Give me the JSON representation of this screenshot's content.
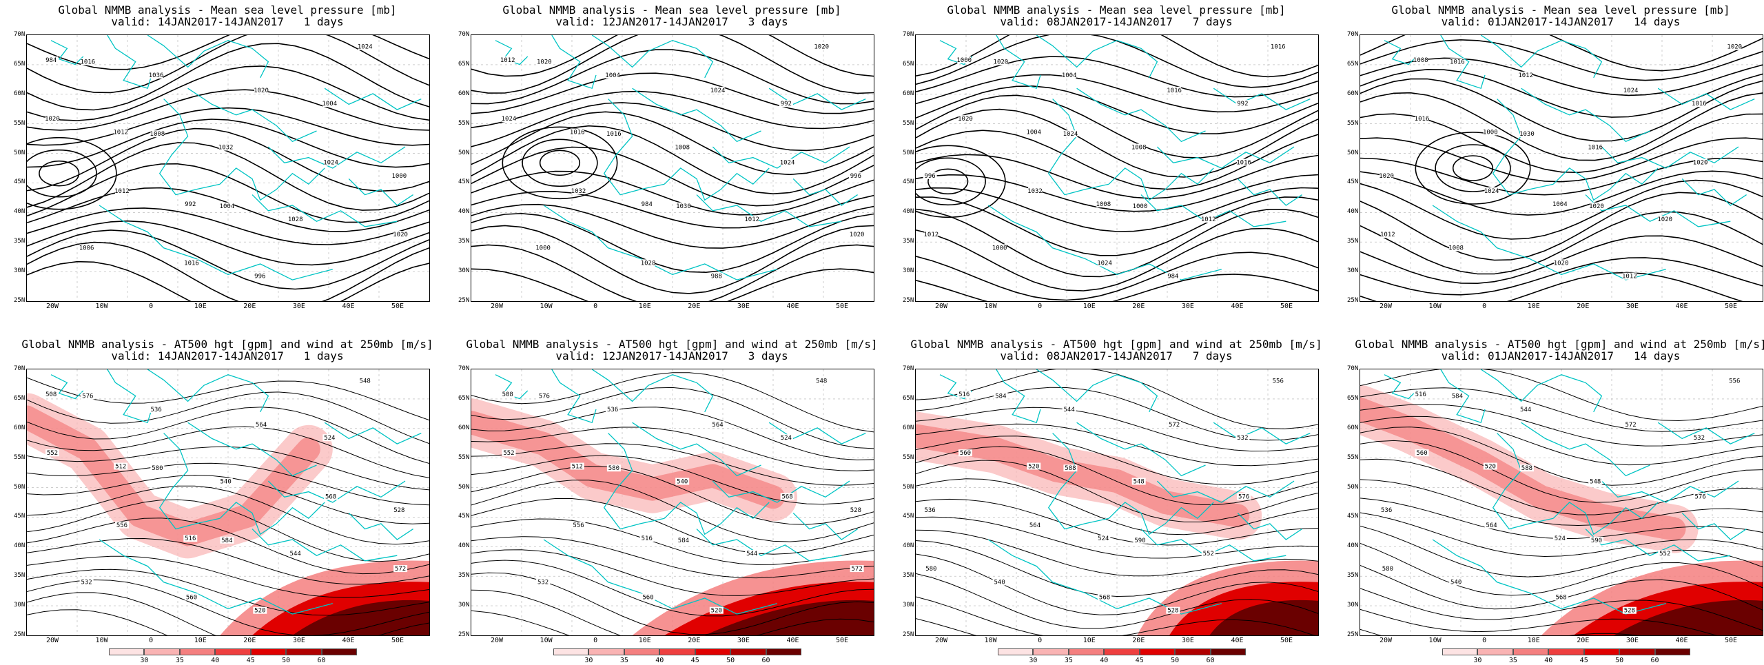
{
  "panels_top": [
    {
      "title": "Global NMMB analysis - Mean sea level pressure [mb]",
      "subtitle": "valid: 14JAN2017-14JAN2017   1 days",
      "variant": 0,
      "labels": [
        "984",
        "1012",
        "992",
        "996",
        "1004",
        "1000",
        "1006",
        "1036",
        "1032",
        "1028",
        "1024",
        "1020",
        "1012",
        "1016",
        "1020",
        "1024",
        "1020",
        "1016",
        "1008",
        "1004"
      ]
    },
    {
      "title": "Global NMMB analysis - Mean sea level pressure [mb]",
      "subtitle": "valid: 12JAN2017-14JAN2017   3 days",
      "variant": 1,
      "labels": [
        "1012",
        "1016",
        "984",
        "988",
        "992",
        "996",
        "1000",
        "1004",
        "1008",
        "1012",
        "1020",
        "1024",
        "1032",
        "1028",
        "1024",
        "1024",
        "1020",
        "1020",
        "1016",
        "1030"
      ]
    },
    {
      "title": "Global NMMB analysis - Mean sea level pressure [mb]",
      "subtitle": "valid: 08JAN2017-14JAN2017   7 days",
      "variant": 2,
      "labels": [
        "1000",
        "1004",
        "1008",
        "984",
        "992",
        "996",
        "1000",
        "1004",
        "1008",
        "1012",
        "1016",
        "1020",
        "1032",
        "1024",
        "1016",
        "1016",
        "1012",
        "1020",
        "1024",
        "1000"
      ]
    },
    {
      "title": "Global NMMB analysis - Mean sea level pressure [mb]",
      "subtitle": "valid: 01JAN2017-14JAN2017   14 days",
      "variant": 3,
      "labels": [
        "1008",
        "1000",
        "1004",
        "1012",
        "1016",
        "1020",
        "1008",
        "1012",
        "1016",
        "1020",
        "1020",
        "1016",
        "1024",
        "1020",
        "1024",
        "1020",
        "1012",
        "1016",
        "1030",
        "1020"
      ]
    }
  ],
  "panels_bottom": [
    {
      "title": "Global NMMB analysis - AT500 hgt [gpm] and wind at 250mb [m/s]",
      "subtitle": "valid: 14JAN2017-14JAN2017   1 days",
      "variant": 0,
      "labels": [
        "508",
        "512",
        "516",
        "520",
        "524",
        "528",
        "532",
        "536",
        "540",
        "544",
        "548",
        "552",
        "556",
        "560",
        "564",
        "568",
        "572",
        "576",
        "580",
        "584"
      ]
    },
    {
      "title": "Global NMMB analysis - AT500 hgt [gpm] and wind at 250mb [m/s]",
      "subtitle": "valid: 12JAN2017-14JAN2017   3 days",
      "variant": 1,
      "labels": [
        "508",
        "512",
        "516",
        "520",
        "524",
        "528",
        "532",
        "536",
        "540",
        "544",
        "548",
        "552",
        "556",
        "560",
        "564",
        "568",
        "572",
        "576",
        "580",
        "584"
      ]
    },
    {
      "title": "Global NMMB analysis - AT500 hgt [gpm] and wind at 250mb [m/s]",
      "subtitle": "valid: 08JAN2017-14JAN2017   7 days",
      "variant": 2,
      "labels": [
        "516",
        "520",
        "524",
        "528",
        "532",
        "536",
        "540",
        "544",
        "548",
        "552",
        "556",
        "560",
        "564",
        "568",
        "572",
        "576",
        "580",
        "584",
        "588",
        "590"
      ]
    },
    {
      "title": "Global NMMB analysis - AT500 hgt [gpm] and wind at 250mb [m/s]",
      "subtitle": "valid: 01JAN2017-14JAN2017   14 days",
      "variant": 3,
      "labels": [
        "516",
        "520",
        "524",
        "528",
        "532",
        "536",
        "540",
        "544",
        "548",
        "552",
        "556",
        "560",
        "564",
        "568",
        "572",
        "576",
        "580",
        "584",
        "588",
        "590"
      ]
    }
  ],
  "lat_labels": [
    "70N",
    "65N",
    "60N",
    "55N",
    "50N",
    "45N",
    "40N",
    "35N",
    "30N",
    "25N"
  ],
  "lon_labels": [
    "20W",
    "10W",
    "0",
    "10E",
    "20E",
    "30E",
    "40E",
    "50E"
  ],
  "colorbar": {
    "ticks": [
      "30",
      "35",
      "40",
      "45",
      "50",
      "60"
    ],
    "colors": [
      "#fde3e3",
      "#f9b3b3",
      "#f47f7f",
      "#ee3f3f",
      "#e00000",
      "#b00000",
      "#6a0000"
    ]
  },
  "colors": {
    "coast": "#00c4c4",
    "isobar": "#000000",
    "grid": "#b0b0b0"
  }
}
